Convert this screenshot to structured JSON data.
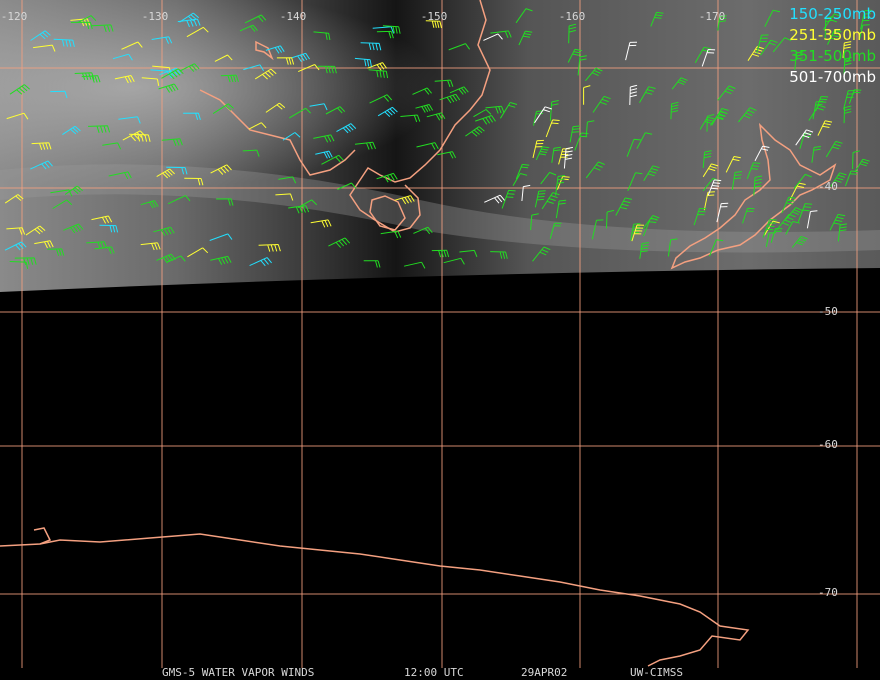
{
  "longitude_labels": [
    "-120",
    "-130",
    "-140",
    "-150",
    "-160",
    "-170"
  ],
  "latitude_labels": [
    "-40",
    "-50",
    "-60",
    "-70"
  ],
  "legend": [
    {
      "label": "150-250mb",
      "color": "#22e0ff"
    },
    {
      "label": "251-350mb",
      "color": "#ffff33"
    },
    {
      "label": "351-500mb",
      "color": "#22dd22"
    },
    {
      "label": "501-700mb",
      "color": "#ffffff"
    }
  ],
  "footer": [
    "GMS-5 WATER VAPOR WINDS",
    "12:00 UTC",
    "29APR02",
    "UW-CIMSS"
  ]
}
